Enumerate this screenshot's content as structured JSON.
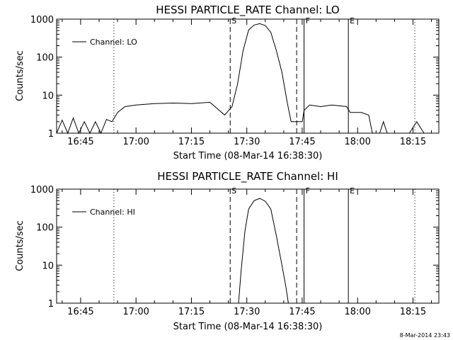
{
  "chart_data": [
    {
      "type": "line",
      "title": "HESSI PARTICLE_RATE Channel: LO",
      "ylabel": "Counts/sec",
      "xlabel": "Start Time (08-Mar-14 16:38:30)",
      "yscale": "log",
      "ylim": [
        1,
        1000
      ],
      "ytick_labels": [
        "1",
        "10",
        "100",
        "1000"
      ],
      "xlim": [
        "16:38:30",
        "18:22:00"
      ],
      "xtick_labels": [
        "16:45",
        "17:00",
        "17:15",
        "17:30",
        "17:45",
        "18:00",
        "18:15"
      ],
      "legend": "Channel: LO",
      "legend_position": "upper-left",
      "markers": [
        {
          "label": "S",
          "time": "17:25:30",
          "style": "dashed"
        },
        {
          "label": "",
          "time": "17:43:30",
          "style": "dashed"
        },
        {
          "label": "F",
          "time": "17:45:30",
          "style": "solid"
        },
        {
          "label": "E",
          "time": "17:57:30",
          "style": "solid"
        }
      ],
      "dotted_lines": [
        "16:54:00",
        "18:15:30"
      ],
      "series": [
        {
          "x": [
            "16:38:30",
            "16:40:00",
            "16:41:30",
            "16:43:00",
            "16:44:30",
            "16:46:00",
            "16:47:30",
            "16:49:00",
            "16:50:30",
            "16:52:00",
            "16:53:30",
            "16:55:00",
            "16:57:00",
            "17:00:00",
            "17:05:00",
            "17:10:00",
            "17:15:00",
            "17:20:00",
            "17:24:00",
            "17:26:00",
            "17:27:30",
            "17:29:00",
            "17:30:30",
            "17:32:00",
            "17:33:30",
            "17:35:00",
            "17:36:30",
            "17:38:00",
            "17:39:30",
            "17:41:00",
            "17:42:00",
            "17:43:00",
            "17:44:00",
            "17:45:00",
            "17:45:30",
            "17:47:00",
            "17:50:00",
            "17:53:00",
            "17:57:00",
            "17:58:00",
            "18:00:00",
            "18:01:00",
            "18:03:00",
            "18:04:00",
            "18:06:00",
            "18:07:00",
            "18:08:00",
            "18:10:00",
            "18:12:00",
            "18:14:00",
            "18:16:00",
            "18:18:00",
            "18:20:00",
            "18:22:00"
          ],
          "values": [
            1,
            2.2,
            1,
            2.5,
            1,
            2,
            1,
            2,
            1,
            2.3,
            2,
            3.5,
            5,
            5.5,
            6,
            6.2,
            6,
            6.5,
            3,
            5,
            20,
            150,
            520,
            700,
            760,
            680,
            450,
            150,
            40,
            6,
            2,
            2,
            2,
            2,
            4,
            5.5,
            5,
            5.5,
            5,
            3.5,
            3.5,
            3.5,
            3,
            1,
            1,
            2,
            1,
            1,
            1,
            1,
            2,
            1,
            1,
            1
          ]
        }
      ]
    },
    {
      "type": "line",
      "title": "HESSI PARTICLE_RATE Channel: HI",
      "ylabel": "Counts/sec",
      "xlabel": "Start Time (08-Mar-14 16:38:30)",
      "yscale": "log",
      "ylim": [
        1,
        1000
      ],
      "ytick_labels": [
        "1",
        "10",
        "100",
        "1000"
      ],
      "xlim": [
        "16:38:30",
        "18:22:00"
      ],
      "xtick_labels": [
        "16:45",
        "17:00",
        "17:15",
        "17:30",
        "17:45",
        "18:00",
        "18:15"
      ],
      "legend": "Channel: HI",
      "legend_position": "upper-left",
      "markers": [
        {
          "label": "S",
          "time": "17:25:30",
          "style": "dashed"
        },
        {
          "label": "",
          "time": "17:43:30",
          "style": "dashed"
        },
        {
          "label": "F",
          "time": "17:45:30",
          "style": "solid"
        },
        {
          "label": "E",
          "time": "17:57:30",
          "style": "solid"
        }
      ],
      "dotted_lines": [
        "16:54:00",
        "18:15:30"
      ],
      "series": [
        {
          "x": [
            "17:27:45",
            "17:28:30",
            "17:29:30",
            "17:30:30",
            "17:32:00",
            "17:33:30",
            "17:35:00",
            "17:36:30",
            "17:38:00",
            "17:39:30",
            "17:40:30",
            "17:41:15"
          ],
          "values": [
            1,
            8,
            80,
            300,
            500,
            570,
            480,
            300,
            60,
            10,
            3,
            1
          ]
        }
      ]
    }
  ],
  "footer": "8-Mar-2014 23:43"
}
